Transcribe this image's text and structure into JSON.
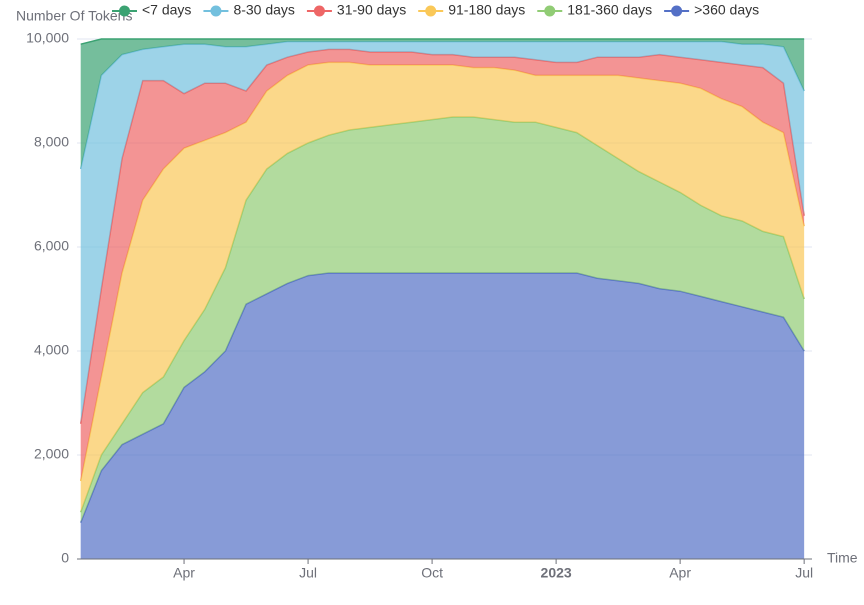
{
  "chart_data": {
    "type": "stacked_area",
    "y_axis_label": "Number Of Tokens",
    "x_axis_label": "Time",
    "categories": [
      null,
      null,
      null,
      null,
      null,
      "Apr",
      null,
      null,
      null,
      null,
      null,
      "Jul",
      null,
      null,
      null,
      null,
      null,
      "Oct",
      null,
      null,
      null,
      null,
      null,
      "2023",
      null,
      null,
      null,
      null,
      null,
      "Apr",
      null,
      null,
      null,
      null,
      null,
      "Jul"
    ],
    "bold_categories": [
      "2023"
    ],
    "series": [
      {
        "name": ">360 days",
        "color": "#5470c6",
        "values": [
          700,
          1700,
          2200,
          2400,
          2600,
          3300,
          3600,
          4000,
          4900,
          5100,
          5300,
          5450,
          5500,
          5500,
          5500,
          5500,
          5500,
          5500,
          5500,
          5500,
          5500,
          5500,
          5500,
          5500,
          5500,
          5400,
          5350,
          5300,
          5200,
          5150,
          5050,
          4950,
          4850,
          4750,
          4650,
          4000
        ]
      },
      {
        "name": "181-360 days",
        "color": "#91cc75",
        "values": [
          200,
          300,
          400,
          800,
          900,
          900,
          1200,
          1600,
          2000,
          2400,
          2500,
          2550,
          2650,
          2750,
          2800,
          2850,
          2900,
          2950,
          3000,
          3000,
          2950,
          2900,
          2900,
          2800,
          2700,
          2550,
          2350,
          2150,
          2050,
          1900,
          1750,
          1650,
          1650,
          1550,
          1550,
          1000
        ]
      },
      {
        "name": "91-180 days",
        "color": "#fac858",
        "values": [
          600,
          1500,
          2900,
          3700,
          4000,
          3700,
          3250,
          2600,
          1500,
          1500,
          1500,
          1500,
          1400,
          1300,
          1200,
          1150,
          1100,
          1050,
          1000,
          950,
          1000,
          1000,
          900,
          1000,
          1100,
          1350,
          1600,
          1800,
          1950,
          2100,
          2250,
          2250,
          2200,
          2100,
          2000,
          1400
        ]
      },
      {
        "name": "31-90 days",
        "color": "#ee6666",
        "values": [
          1100,
          1700,
          2200,
          2300,
          1700,
          1050,
          1100,
          950,
          600,
          500,
          350,
          250,
          250,
          250,
          250,
          250,
          250,
          200,
          200,
          200,
          200,
          250,
          300,
          250,
          250,
          350,
          350,
          400,
          500,
          500,
          550,
          700,
          800,
          1050,
          950,
          200
        ]
      },
      {
        "name": "8-30 days",
        "color": "#73c0de",
        "values": [
          4900,
          4100,
          2000,
          600,
          650,
          950,
          750,
          700,
          850,
          400,
          300,
          200,
          150,
          150,
          200,
          200,
          200,
          250,
          250,
          300,
          300,
          300,
          350,
          400,
          400,
          300,
          300,
          300,
          250,
          300,
          350,
          400,
          400,
          450,
          700,
          2400
        ]
      },
      {
        "name": "<7 days",
        "color": "#3ba272",
        "values": [
          2400,
          700,
          300,
          200,
          150,
          100,
          100,
          150,
          150,
          100,
          50,
          50,
          50,
          50,
          50,
          50,
          50,
          50,
          50,
          50,
          50,
          50,
          50,
          50,
          50,
          50,
          50,
          50,
          50,
          50,
          50,
          50,
          100,
          100,
          150,
          1000
        ]
      }
    ],
    "legend_order": [
      5,
      4,
      3,
      2,
      1,
      0
    ],
    "ylim": [
      0,
      10000
    ],
    "yticks": [
      0,
      {
        "value": 2000,
        "label": "2,000"
      },
      {
        "value": 4000,
        "label": "4,000"
      },
      {
        "value": 6000,
        "label": "6,000"
      },
      {
        "value": 8000,
        "label": "8,000"
      },
      {
        "value": 10000,
        "label": "10,000"
      }
    ],
    "grid": true
  }
}
